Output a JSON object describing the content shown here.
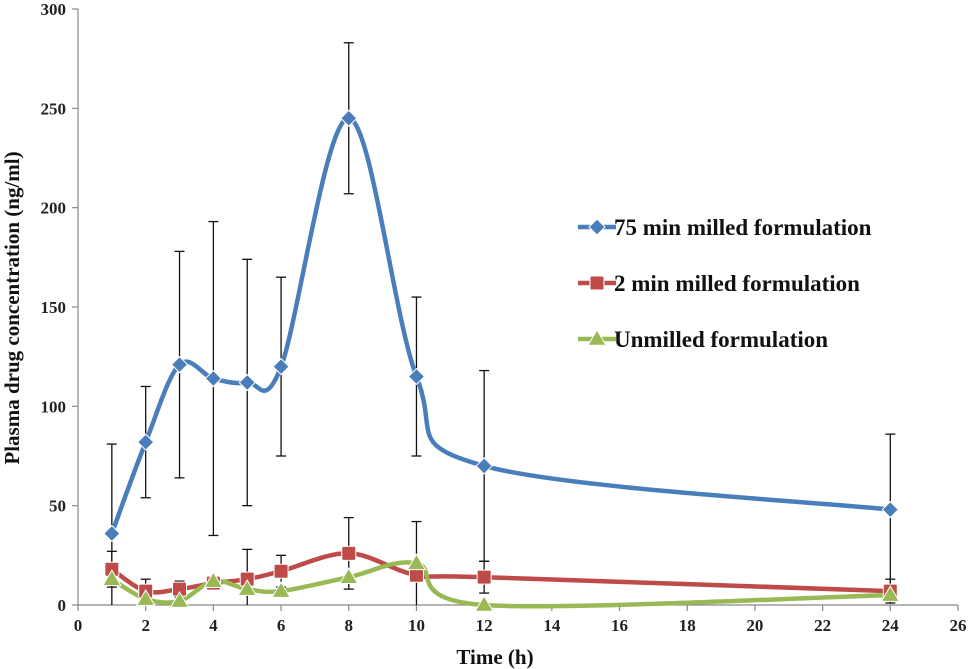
{
  "chart_data": {
    "type": "line",
    "xlabel": "Time (h)",
    "ylabel": "Plasma drug concentration (ng/ml)",
    "xlim": [
      0,
      26
    ],
    "ylim": [
      0,
      300
    ],
    "xticks": [
      0,
      2,
      4,
      6,
      8,
      10,
      12,
      14,
      16,
      18,
      20,
      22,
      24,
      26
    ],
    "yticks": [
      0,
      50,
      100,
      150,
      200,
      250,
      300
    ],
    "grid": false,
    "legend_position": "right",
    "series": [
      {
        "name": "75 min milled formulation",
        "color": "#4a7ebb",
        "marker": "diamond",
        "x": [
          1,
          2,
          3,
          4,
          5,
          6,
          8,
          10,
          12,
          24
        ],
        "y": [
          36,
          82,
          121,
          114,
          112,
          120,
          245,
          115,
          70,
          48
        ],
        "error": [
          45,
          28,
          57,
          79,
          62,
          45,
          38,
          40,
          48,
          38
        ]
      },
      {
        "name": "2 min milled formulation",
        "color": "#be4b48",
        "marker": "square",
        "x": [
          1,
          2,
          3,
          4,
          5,
          6,
          8,
          10,
          12,
          24
        ],
        "y": [
          18,
          7,
          8,
          11,
          13,
          17,
          26,
          15,
          14,
          7
        ],
        "error": [
          9,
          6,
          4,
          3,
          15,
          8,
          18,
          27,
          8,
          6
        ]
      },
      {
        "name": "Unmilled formulation",
        "color": "#98b954",
        "marker": "triangle",
        "x": [
          1,
          2,
          3,
          4,
          5,
          6,
          8,
          10,
          12,
          24
        ],
        "y": [
          13,
          3,
          2,
          12,
          8,
          7,
          14,
          21,
          0,
          5
        ],
        "error": [
          0,
          0,
          0,
          0,
          0,
          0,
          0,
          0,
          0,
          0
        ]
      }
    ]
  }
}
